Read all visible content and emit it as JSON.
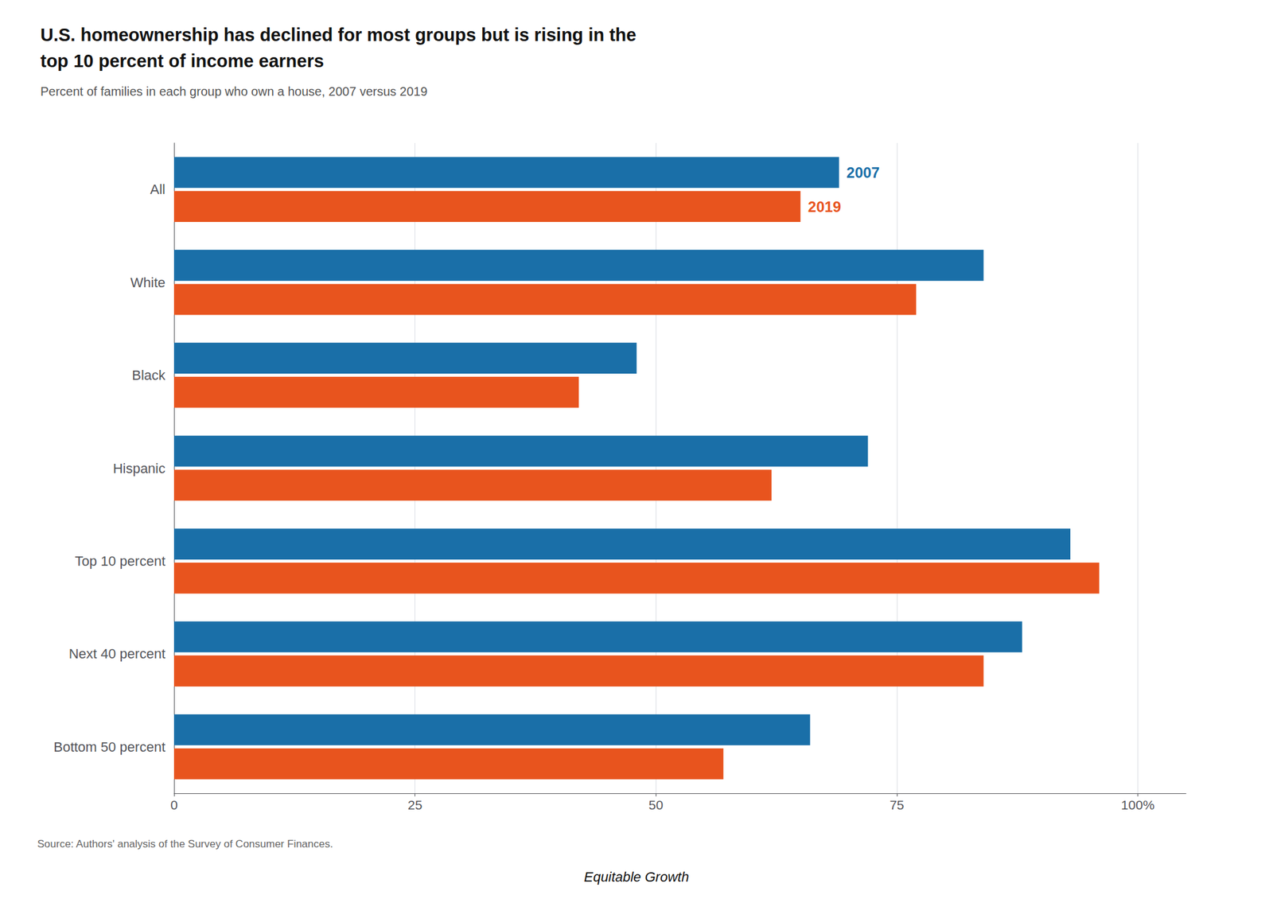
{
  "chart_data": {
    "type": "bar",
    "orientation": "horizontal",
    "title": "U.S. homeownership has declined for most groups but is rising in the\ntop 10 percent of income earners",
    "subtitle": "Percent of families in each group who own a house, 2007 versus 2019",
    "categories": [
      "All",
      "White",
      "Black",
      "Hispanic",
      "Top 10 percent",
      "Next 40 percent",
      "Bottom 50 percent"
    ],
    "series": [
      {
        "name": "2007",
        "color": "#1a6fa8",
        "values": [
          69,
          84,
          48,
          72,
          93,
          88,
          66
        ]
      },
      {
        "name": "2019",
        "color": "#e8541e",
        "values": [
          65,
          77,
          42,
          62,
          96,
          84,
          57
        ]
      }
    ],
    "xlim": [
      0,
      105
    ],
    "xticks": [
      0,
      25,
      50,
      75,
      {
        "value": 100,
        "label": "100%"
      }
    ],
    "grid": true,
    "annotations": [
      "Source: Authors' analysis of the Survey of Consumer Finances.",
      "Equitable Growth"
    ]
  }
}
